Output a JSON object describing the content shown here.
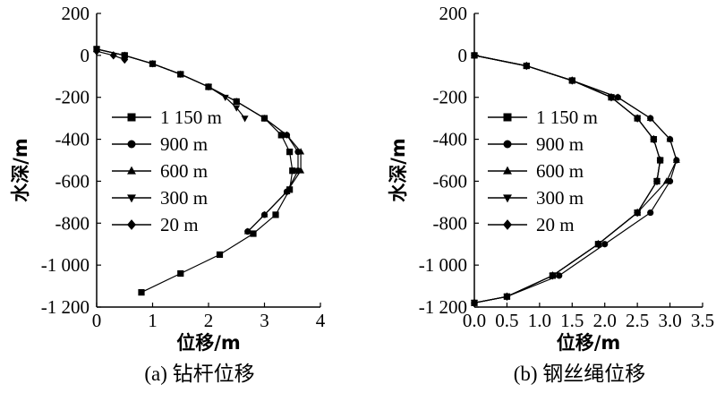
{
  "chart_data": [
    {
      "type": "line",
      "caption": "(a) 钻杆位移",
      "xlabel": "位移/m",
      "ylabel": "水深/m",
      "xlim": [
        0,
        4
      ],
      "ylim": [
        -1200,
        200
      ],
      "xticks": [
        0,
        1,
        2,
        3,
        4
      ],
      "xtick_labels": [
        "0",
        "1",
        "2",
        "3",
        "4"
      ],
      "yticks": [
        200,
        0,
        -200,
        -400,
        -600,
        -800,
        -1000,
        -1200
      ],
      "ytick_labels": [
        "200",
        "0",
        "-200",
        "-400",
        "-600",
        "-800",
        "-1 000",
        "-1 200"
      ],
      "legend_position": "left",
      "series": [
        {
          "name": "1 150 m",
          "marker": "square",
          "x": [
            0.0,
            0.5,
            1.0,
            1.5,
            2.0,
            2.5,
            3.0,
            3.3,
            3.45,
            3.5,
            3.45,
            3.2,
            2.8,
            2.2,
            1.5,
            0.8
          ],
          "y": [
            30,
            0,
            -40,
            -90,
            -150,
            -220,
            -300,
            -380,
            -460,
            -550,
            -640,
            -760,
            -850,
            -950,
            -1040,
            -1130
          ]
        },
        {
          "name": "900 m",
          "marker": "circle",
          "x": [
            0.0,
            0.5,
            1.0,
            1.5,
            2.0,
            2.5,
            3.0,
            3.4,
            3.6,
            3.6,
            3.4,
            3.0,
            2.7
          ],
          "y": [
            30,
            0,
            -40,
            -90,
            -150,
            -220,
            -300,
            -380,
            -460,
            -550,
            -650,
            -760,
            -840
          ]
        },
        {
          "name": "600 m",
          "marker": "triangle-up",
          "x": [
            0.0,
            0.5,
            1.0,
            1.5,
            2.0,
            2.5,
            3.0,
            3.4,
            3.65,
            3.65,
            3.4,
            3.0,
            2.7
          ],
          "y": [
            30,
            0,
            -40,
            -90,
            -150,
            -220,
            -300,
            -380,
            -460,
            -550,
            -650,
            -760,
            -840
          ]
        },
        {
          "name": "300 m",
          "marker": "triangle-down",
          "x": [
            0.0,
            0.5,
            1.0,
            1.5,
            2.0,
            2.3,
            2.5,
            2.65
          ],
          "y": [
            30,
            0,
            -40,
            -90,
            -150,
            -200,
            -250,
            -300
          ]
        },
        {
          "name": "20 m",
          "marker": "diamond",
          "x": [
            0.0,
            0.3,
            0.5
          ],
          "y": [
            20,
            0,
            -20
          ]
        }
      ]
    },
    {
      "type": "line",
      "caption": "(b) 钢丝绳位移",
      "xlabel": "位移/m",
      "ylabel": "水深/m",
      "xlim": [
        0,
        3.5
      ],
      "ylim": [
        -1200,
        200
      ],
      "xticks": [
        0,
        0.5,
        1.0,
        1.5,
        2.0,
        2.5,
        3.0,
        3.5
      ],
      "xtick_labels": [
        "0.0",
        "0.5",
        "1.0",
        "1.5",
        "2.0",
        "2.5",
        "3.0",
        "3.5"
      ],
      "yticks": [
        200,
        0,
        -200,
        -400,
        -600,
        -800,
        -1000,
        -1200
      ],
      "ytick_labels": [
        "200",
        "0",
        "-200",
        "-400",
        "-600",
        "-800",
        "-1 000",
        "-1 200"
      ],
      "legend_position": "left",
      "series": [
        {
          "name": "1 150 m",
          "marker": "square",
          "x": [
            0.0,
            0.8,
            1.5,
            2.1,
            2.5,
            2.75,
            2.85,
            2.8,
            2.5,
            1.9,
            1.2,
            0.5,
            0.0
          ],
          "y": [
            0,
            -50,
            -120,
            -200,
            -300,
            -400,
            -500,
            -600,
            -750,
            -900,
            -1050,
            -1150,
            -1180
          ]
        },
        {
          "name": "900 m",
          "marker": "circle",
          "x": [
            0.0,
            0.8,
            1.5,
            2.2,
            2.7,
            3.0,
            3.1,
            3.0,
            2.7,
            2.0,
            1.3,
            0.5,
            0.0
          ],
          "y": [
            0,
            -50,
            -120,
            -200,
            -300,
            -400,
            -500,
            -600,
            -750,
            -900,
            -1050,
            -1150,
            -1180
          ]
        },
        {
          "name": "600 m",
          "marker": "triangle-up",
          "x": [
            0.0,
            0.8,
            1.5,
            2.2,
            2.7,
            3.0,
            3.1,
            2.95,
            2.5,
            1.9,
            1.2,
            0.5,
            0.0
          ],
          "y": [
            0,
            -50,
            -120,
            -200,
            -300,
            -400,
            -500,
            -600,
            -750,
            -900,
            -1050,
            -1150,
            -1180
          ]
        },
        {
          "name": "300 m",
          "marker": "triangle-down",
          "x": [
            0.0,
            0.8,
            1.5,
            2.1,
            2.5,
            2.75,
            2.85,
            2.8,
            2.5,
            1.9,
            1.2,
            0.5,
            0.0
          ],
          "y": [
            0,
            -50,
            -120,
            -200,
            -300,
            -400,
            -500,
            -600,
            -750,
            -900,
            -1050,
            -1150,
            -1180
          ]
        },
        {
          "name": "20 m",
          "marker": "diamond",
          "x": [
            0.0,
            0.8,
            1.5,
            2.1,
            2.5,
            2.75,
            2.85,
            2.8,
            2.5,
            1.9,
            1.2,
            0.5,
            0.0
          ],
          "y": [
            0,
            -50,
            -120,
            -200,
            -300,
            -400,
            -500,
            -600,
            -750,
            -900,
            -1050,
            -1150,
            -1180
          ]
        }
      ]
    }
  ]
}
